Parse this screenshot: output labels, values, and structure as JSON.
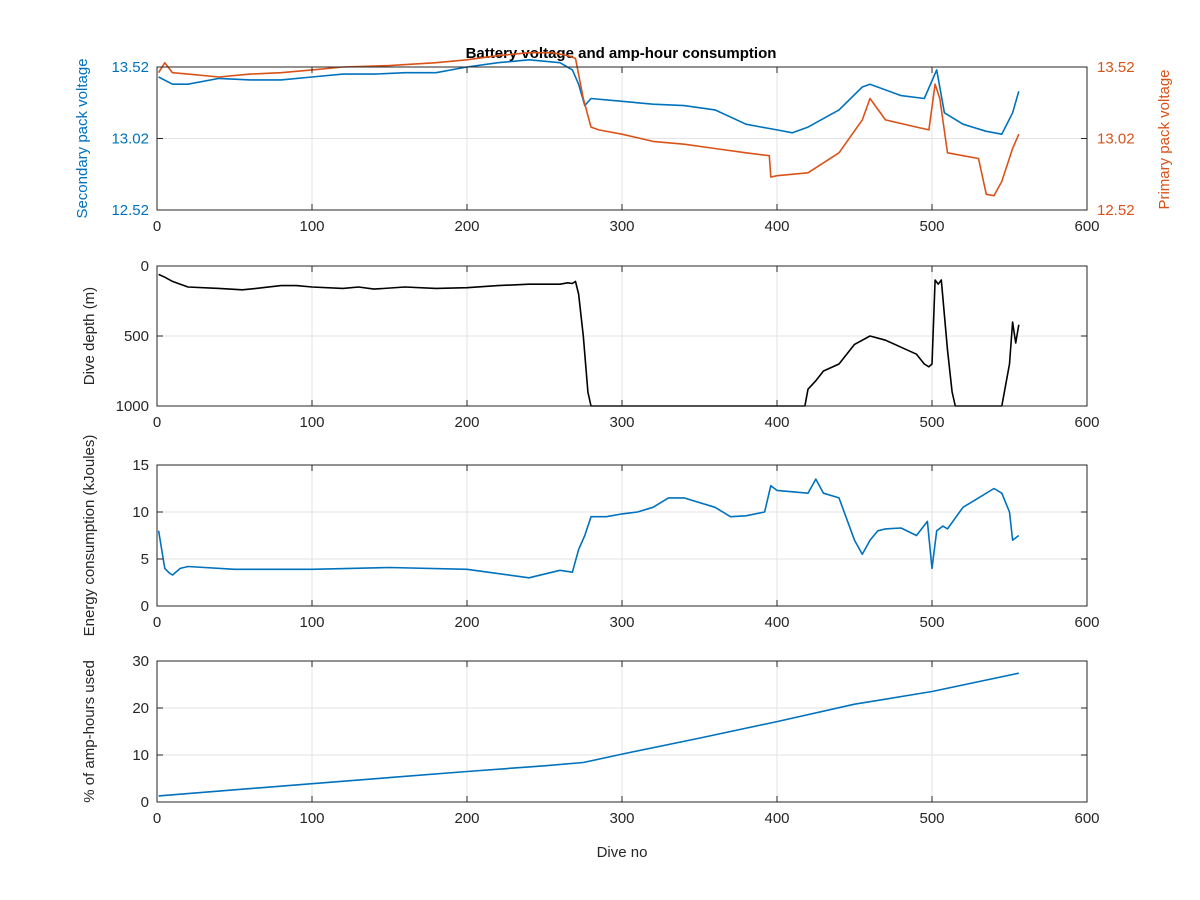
{
  "chart_data": [
    {
      "type": "line",
      "title": "Battery voltage and amp-hour consumption",
      "xlim": [
        0,
        600
      ],
      "xticks": [
        "0",
        "100",
        "200",
        "300",
        "400",
        "500",
        "600"
      ],
      "ylabel_left": "Secondary pack voltage",
      "ylabel_right": "Primary pack voltage",
      "ylim_left": [
        12.52,
        13.52
      ],
      "ylim_right": [
        12.52,
        13.52
      ],
      "yticks_left": [
        "12.52",
        "13.02",
        "13.52"
      ],
      "yticks_right": [
        "12.52",
        "13.02",
        "13.52"
      ],
      "grid": true,
      "series": [
        {
          "axis": "left",
          "color": "#0072BD",
          "x": [
            1,
            10,
            20,
            40,
            60,
            80,
            100,
            120,
            140,
            160,
            180,
            200,
            220,
            240,
            260,
            268,
            272,
            276,
            280,
            300,
            320,
            340,
            360,
            380,
            390,
            400,
            410,
            420,
            440,
            455,
            460,
            480,
            495,
            503,
            508,
            520,
            535,
            545,
            552,
            556
          ],
          "y": [
            13.45,
            13.4,
            13.4,
            13.44,
            13.43,
            13.43,
            13.45,
            13.47,
            13.47,
            13.48,
            13.48,
            13.52,
            13.55,
            13.57,
            13.55,
            13.5,
            13.4,
            13.25,
            13.3,
            13.28,
            13.26,
            13.25,
            13.22,
            13.12,
            13.1,
            13.08,
            13.06,
            13.1,
            13.22,
            13.38,
            13.4,
            13.32,
            13.3,
            13.5,
            13.2,
            13.12,
            13.07,
            13.05,
            13.2,
            13.35
          ]
        },
        {
          "axis": "right",
          "color": "#D95319",
          "x": [
            1,
            5,
            10,
            20,
            40,
            60,
            80,
            100,
            120,
            150,
            180,
            200,
            220,
            240,
            255,
            265,
            270,
            275,
            280,
            285,
            300,
            320,
            340,
            360,
            380,
            395,
            396,
            400,
            420,
            440,
            455,
            460,
            470,
            490,
            498,
            502,
            505,
            510,
            520,
            530,
            535,
            540,
            545,
            552,
            556
          ],
          "y": [
            13.48,
            13.55,
            13.48,
            13.47,
            13.45,
            13.47,
            13.48,
            13.5,
            13.52,
            13.53,
            13.55,
            13.57,
            13.6,
            13.62,
            13.62,
            13.6,
            13.58,
            13.3,
            13.1,
            13.08,
            13.05,
            13.0,
            12.98,
            12.95,
            12.92,
            12.9,
            12.75,
            12.76,
            12.78,
            12.92,
            13.15,
            13.3,
            13.15,
            13.1,
            13.08,
            13.4,
            13.3,
            12.92,
            12.9,
            12.88,
            12.63,
            12.62,
            12.72,
            12.95,
            13.05
          ]
        }
      ]
    },
    {
      "type": "line",
      "title": "",
      "xlim": [
        0,
        600
      ],
      "xticks": [
        "0",
        "100",
        "200",
        "300",
        "400",
        "500",
        "600"
      ],
      "ylabel": "Dive depth (m)",
      "ylim": [
        0,
        1000
      ],
      "y_reversed": true,
      "yticks": [
        "0",
        "500",
        "1000"
      ],
      "grid": true,
      "series": [
        {
          "color": "#000000",
          "x": [
            1,
            5,
            10,
            15,
            20,
            40,
            55,
            60,
            80,
            90,
            100,
            120,
            130,
            140,
            160,
            180,
            200,
            220,
            240,
            260,
            265,
            268,
            270,
            272,
            275,
            278,
            280,
            300,
            350,
            400,
            418,
            420,
            425,
            430,
            440,
            450,
            460,
            470,
            480,
            490,
            495,
            498,
            500,
            502,
            504,
            506,
            510,
            513,
            515,
            520,
            530,
            545,
            550,
            552,
            554,
            556
          ],
          "y": [
            60,
            80,
            110,
            130,
            150,
            160,
            170,
            165,
            140,
            140,
            150,
            160,
            150,
            165,
            150,
            160,
            155,
            140,
            130,
            130,
            120,
            125,
            110,
            200,
            500,
            900,
            1000,
            1000,
            1000,
            1000,
            1000,
            880,
            820,
            750,
            700,
            560,
            500,
            530,
            580,
            630,
            700,
            720,
            700,
            100,
            130,
            100,
            600,
            900,
            1000,
            1000,
            1000,
            1000,
            700,
            400,
            550,
            420
          ]
        }
      ]
    },
    {
      "type": "line",
      "title": "",
      "xlim": [
        0,
        600
      ],
      "xticks": [
        "0",
        "100",
        "200",
        "300",
        "400",
        "500",
        "600"
      ],
      "ylabel": "Energy consumption (kJoules)",
      "ylim": [
        0,
        15
      ],
      "yticks": [
        "0",
        "5",
        "10",
        "15"
      ],
      "grid": true,
      "series": [
        {
          "color": "#0072BD",
          "x": [
            1,
            3,
            5,
            8,
            10,
            15,
            20,
            50,
            100,
            150,
            200,
            240,
            260,
            268,
            272,
            276,
            280,
            290,
            300,
            310,
            320,
            330,
            340,
            360,
            370,
            380,
            392,
            396,
            400,
            420,
            425,
            430,
            440,
            450,
            455,
            460,
            465,
            470,
            480,
            490,
            497,
            500,
            503,
            507,
            510,
            520,
            530,
            540,
            545,
            550,
            552,
            556
          ],
          "y": [
            8,
            6,
            4,
            3.5,
            3.3,
            4,
            4.2,
            3.9,
            3.9,
            4.1,
            3.9,
            3,
            3.8,
            3.6,
            6,
            7.5,
            9.5,
            9.5,
            9.8,
            10,
            10.5,
            11.5,
            11.5,
            10.5,
            9.5,
            9.6,
            10,
            12.8,
            12.3,
            12,
            13.5,
            12,
            11.5,
            7,
            5.5,
            7,
            8,
            8.2,
            8.3,
            7.5,
            9,
            4,
            8,
            8.5,
            8.2,
            10.5,
            11.5,
            12.5,
            12,
            10,
            7,
            7.5
          ]
        }
      ]
    },
    {
      "type": "line",
      "title": "",
      "xlim": [
        0,
        600
      ],
      "xticks": [
        "0",
        "100",
        "200",
        "300",
        "400",
        "500",
        "600"
      ],
      "xlabel": "Dive no",
      "ylabel": "% of amp-hours used",
      "ylim": [
        0,
        30
      ],
      "yticks": [
        "0",
        "10",
        "20",
        "30"
      ],
      "grid": true,
      "series": [
        {
          "color": "#0072BD",
          "x": [
            1,
            50,
            100,
            150,
            200,
            250,
            275,
            300,
            350,
            400,
            450,
            500,
            556
          ],
          "y": [
            1.3,
            2.6,
            3.9,
            5.2,
            6.5,
            7.7,
            8.4,
            10.2,
            13.6,
            17.1,
            20.8,
            23.5,
            27.4
          ]
        }
      ]
    }
  ]
}
